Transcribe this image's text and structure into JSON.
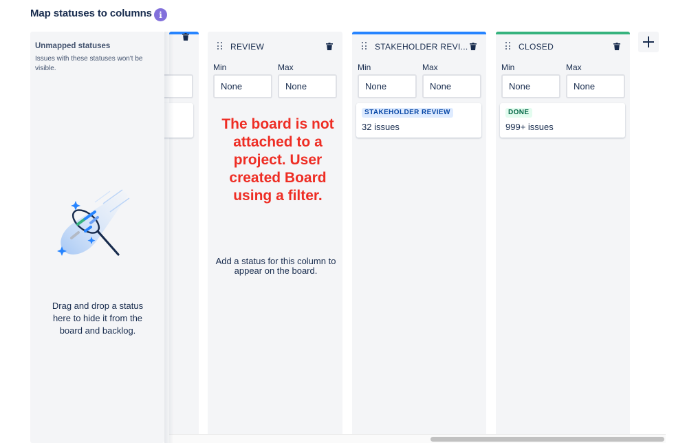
{
  "page": {
    "title": "Map statuses to columns"
  },
  "unmapped": {
    "title": "Unmapped statuses",
    "description": "Issues with these statuses won't be visible.",
    "drop_hint": "Drag and drop a status here to hide it from the board and backlog."
  },
  "columns": [
    {
      "name": "REVIEW",
      "min_label": "Min",
      "max_label": "Max",
      "min_placeholder": "None",
      "max_placeholder": "None",
      "empty_text": "Add a status for this column to appear on the board."
    },
    {
      "name": "STAKEHOLDER REVI...",
      "bar_color": "#2684ff",
      "min_label": "Min",
      "max_label": "Max",
      "min_placeholder": "None",
      "max_placeholder": "None",
      "status": {
        "label": "STAKEHOLDER REVIEW",
        "count": "32 issues",
        "bg": "#deebff",
        "fg": "#0747a6"
      }
    },
    {
      "name": "CLOSED",
      "bar_color": "#36b37e",
      "min_label": "Min",
      "max_label": "Max",
      "min_placeholder": "None",
      "max_placeholder": "None",
      "status": {
        "label": "DONE",
        "count": "999+ issues",
        "bg": "#e3fcef",
        "fg": "#006644"
      }
    }
  ],
  "annotation": "The board is not attached to a project. User created Board using a filter.",
  "icons": {
    "info": "info-icon",
    "trash": "trash-icon",
    "drag": "drag-handle-icon",
    "add": "plus-icon"
  },
  "colors": {
    "accent_blue": "#2684ff",
    "accent_green": "#36b37e",
    "annotation_red": "#ee2d24",
    "info_purple": "#8270db"
  }
}
